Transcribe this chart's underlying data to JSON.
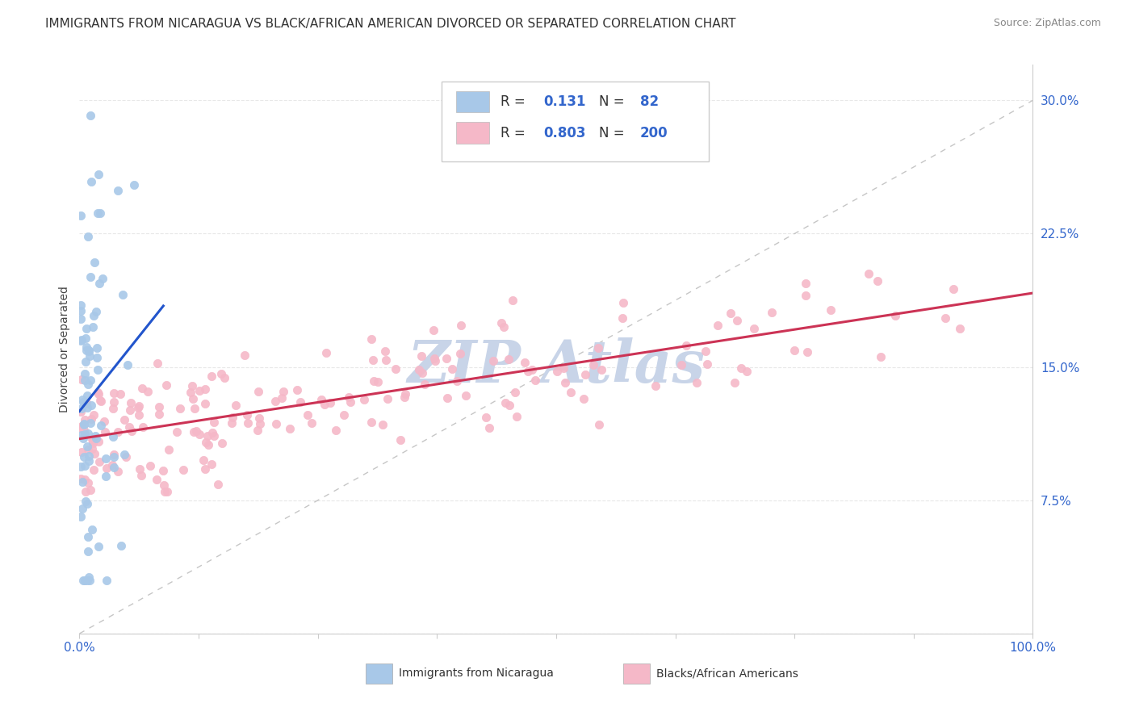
{
  "title": "IMMIGRANTS FROM NICARAGUA VS BLACK/AFRICAN AMERICAN DIVORCED OR SEPARATED CORRELATION CHART",
  "source": "Source: ZipAtlas.com",
  "ylabel": "Divorced or Separated",
  "xlim": [
    0.0,
    1.0
  ],
  "ylim": [
    0.0,
    0.32
  ],
  "yticks": [
    0.0,
    0.075,
    0.15,
    0.225,
    0.3
  ],
  "ytick_labels": [
    "",
    "7.5%",
    "15.0%",
    "22.5%",
    "30.0%"
  ],
  "xtick_labels": [
    "0.0%",
    "100.0%"
  ],
  "series1_color": "#a8c8e8",
  "series2_color": "#f5b8c8",
  "trendline1_color": "#2255cc",
  "trendline2_color": "#cc3355",
  "refline_color": "#c0c0c0",
  "tick_label_color": "#3366cc",
  "watermark_color": "#c8d4e8",
  "background_color": "#ffffff",
  "grid_color": "#e8e8e8",
  "title_fontsize": 11,
  "label_fontsize": 10,
  "tick_fontsize": 11,
  "legend_text_color_label": "#333333",
  "legend_text_color_value": "#3366cc",
  "bottom_legend_text_color": "#333333"
}
